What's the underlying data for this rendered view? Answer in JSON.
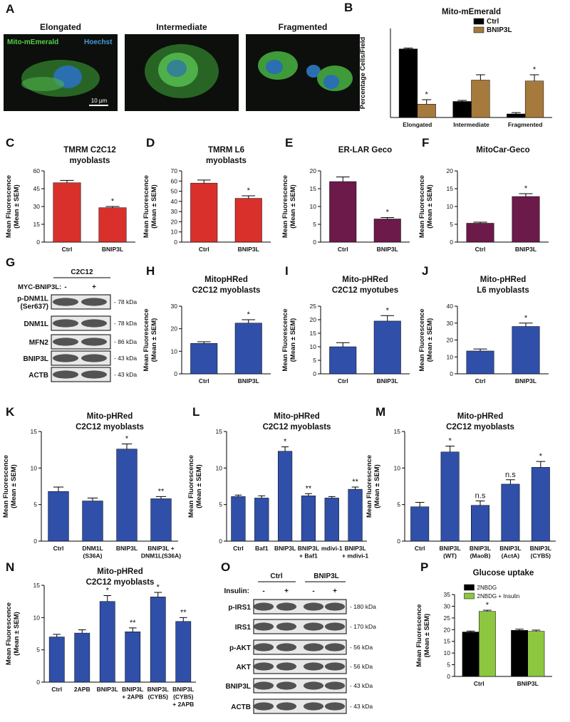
{
  "panel_a": {
    "panel": "A",
    "labels": [
      "Elongated",
      "Intermediate",
      "Fragmented"
    ],
    "channel_green": "Mito-mEmerald",
    "channel_blue": "Hoechst",
    "scale": "10 µm"
  },
  "panel_g": {
    "panel": "G",
    "group": "C2C12",
    "condition": "MYC-BNIP3L:",
    "signs": [
      "-",
      "+"
    ],
    "rows": [
      {
        "label": [
          "p-DNM1L",
          "(Ser637)"
        ],
        "size": "- 78 kDa"
      },
      {
        "label": [
          "DNM1L"
        ],
        "size": "- 78 kDa"
      },
      {
        "label": [
          "MFN2"
        ],
        "size": "- 86 kDa"
      },
      {
        "label": [
          "BNIP3L"
        ],
        "size": "- 43 kDa"
      },
      {
        "label": [
          "ACTB"
        ],
        "size": "- 43 kDa"
      }
    ]
  },
  "panel_o": {
    "panel": "O",
    "groups": [
      "Ctrl",
      "BNIP3L"
    ],
    "condition": "Insulin:",
    "signs": [
      "-",
      "+",
      "-",
      "+"
    ],
    "rows": [
      {
        "label": "p-IRS1",
        "size": "- 180 kDa"
      },
      {
        "label": "IRS1",
        "size": "- 170 kDa"
      },
      {
        "label": "p-AKT",
        "size": "- 56 kDa"
      },
      {
        "label": "AKT",
        "size": "- 56 kDa"
      },
      {
        "label": "BNIP3L",
        "size": "- 43 kDa"
      },
      {
        "label": "ACTB",
        "size": "- 43 kDa"
      }
    ]
  },
  "chart_data": [
    {
      "type": "bar",
      "panel": "B",
      "title": [
        "Mito-mEmerald"
      ],
      "ylabel": [
        "Percentage Cells/Field"
      ],
      "categories": [
        [
          "Elongated"
        ],
        [
          "Intermediate"
        ],
        [
          "Fragmented"
        ]
      ],
      "series": [
        {
          "name": "Ctrl",
          "color": "#000000",
          "values": [
            77,
            18,
            4
          ],
          "errors": [
            1,
            1.2,
            1.5
          ],
          "labels": [
            null,
            null,
            null
          ]
        },
        {
          "name": "BNIP3L",
          "color": "#a67a3c",
          "values": [
            15,
            42,
            41
          ],
          "errors": [
            5,
            6,
            7
          ],
          "labels": [
            "*",
            null,
            "*"
          ]
        }
      ],
      "ylim": [
        0,
        100
      ],
      "legend": "upper right"
    },
    {
      "type": "bar",
      "panel": "C",
      "title": [
        "TMRM C2C12",
        "myoblasts"
      ],
      "ylabel": [
        "Mean Fluorescence",
        "(Mean ± SEM)"
      ],
      "categories": [
        [
          "Ctrl"
        ],
        [
          "BNIP3L"
        ]
      ],
      "values": [
        50,
        29
      ],
      "errors": [
        2,
        1
      ],
      "labels": [
        null,
        "*"
      ],
      "color": "#d9302b",
      "ylim": [
        0,
        60
      ],
      "yticks": [
        0,
        15,
        30,
        45,
        60
      ]
    },
    {
      "type": "bar",
      "panel": "D",
      "title": [
        "TMRM  L6",
        "myoblasts"
      ],
      "ylabel": [
        "Mean Fluorescence",
        "(Mean ± SEM)"
      ],
      "categories": [
        [
          "Ctrl"
        ],
        [
          "BNIP3L"
        ]
      ],
      "values": [
        58,
        43
      ],
      "errors": [
        3,
        2.5
      ],
      "labels": [
        null,
        "*"
      ],
      "color": "#d9302b",
      "ylim": [
        0,
        70
      ],
      "yticks": [
        0,
        10,
        20,
        30,
        40,
        50,
        60,
        70
      ]
    },
    {
      "type": "bar",
      "panel": "E",
      "title": [
        "ER-LAR Geco"
      ],
      "ylabel": [
        "Mean Fluorescence",
        "(Mean ± SEM)"
      ],
      "categories": [
        [
          "Ctrl"
        ],
        [
          "BNIP3L"
        ]
      ],
      "values": [
        17,
        6.5
      ],
      "errors": [
        1.3,
        0.4
      ],
      "labels": [
        null,
        "*"
      ],
      "color": "#6b1a4a",
      "ylim": [
        0,
        20
      ],
      "yticks": [
        0,
        5,
        10,
        15,
        20
      ]
    },
    {
      "type": "bar",
      "panel": "F",
      "title": [
        "MitoCar-Geco"
      ],
      "ylabel": [
        "Mean Fluorescence",
        "(Mean ± SEM)"
      ],
      "categories": [
        [
          "Ctrl"
        ],
        [
          "BNIP3L"
        ]
      ],
      "values": [
        5.3,
        12.8
      ],
      "errors": [
        0.3,
        0.8
      ],
      "labels": [
        null,
        "*"
      ],
      "color": "#6b1a4a",
      "ylim": [
        0,
        20
      ],
      "yticks": [
        0,
        5,
        10,
        15,
        20
      ]
    },
    {
      "type": "bar",
      "panel": "H",
      "title": [
        "MitopHRed",
        "C2C12 myoblasts"
      ],
      "ylabel": [
        "Mean Fluorescence",
        "(Mean ± SEM)"
      ],
      "categories": [
        [
          "Ctrl"
        ],
        [
          "BNIP3L"
        ]
      ],
      "values": [
        13.5,
        22.5
      ],
      "errors": [
        0.7,
        1.5
      ],
      "labels": [
        null,
        "*"
      ],
      "color": "#2f4fa8",
      "ylim": [
        0,
        30
      ],
      "yticks": [
        0,
        10,
        20,
        30
      ]
    },
    {
      "type": "bar",
      "panel": "I",
      "title": [
        "Mito-pHRed",
        "C2C12 myotubes"
      ],
      "ylabel": [
        "Mean Fluorescence",
        "(Mean ± SEM)"
      ],
      "categories": [
        [
          "Ctrl"
        ],
        [
          "BNIP3L"
        ]
      ],
      "values": [
        10,
        19.5
      ],
      "errors": [
        1.5,
        2
      ],
      "labels": [
        null,
        "*"
      ],
      "color": "#2f4fa8",
      "ylim": [
        0,
        25
      ],
      "yticks": [
        0,
        5,
        10,
        15,
        20,
        25
      ]
    },
    {
      "type": "bar",
      "panel": "J",
      "title": [
        "Mito-pHRed",
        "L6 myoblasts"
      ],
      "ylabel": [
        "Mean Fluorescence",
        "(Mean ± SEM)"
      ],
      "categories": [
        [
          "Ctrl"
        ],
        [
          "BNIP3L"
        ]
      ],
      "values": [
        13.5,
        28
      ],
      "errors": [
        1.2,
        2
      ],
      "labels": [
        null,
        "*"
      ],
      "color": "#2f4fa8",
      "ylim": [
        0,
        40
      ],
      "yticks": [
        0,
        10,
        20,
        30,
        40
      ]
    },
    {
      "type": "bar",
      "panel": "K",
      "title": [
        "Mito-pHRed",
        "C2C12 myoblasts"
      ],
      "ylabel": [
        "Mean Fluorescence",
        "(Mean ± SEM)"
      ],
      "categories": [
        [
          "Ctrl"
        ],
        [
          "DNM1L",
          "(S36A)"
        ],
        [
          "BNIP3L"
        ],
        [
          "BNIP3L +",
          "DNM1L(S36A)"
        ]
      ],
      "values": [
        6.8,
        5.5,
        12.6,
        5.8
      ],
      "errors": [
        0.6,
        0.4,
        0.7,
        0.3
      ],
      "labels": [
        null,
        null,
        "*",
        "**"
      ],
      "color": "#2f4fa8",
      "ylim": [
        0,
        15
      ],
      "yticks": [
        0,
        5,
        10,
        15
      ]
    },
    {
      "type": "bar",
      "panel": "L",
      "title": [
        "Mito-pHRed",
        "C2C12 myoblasts"
      ],
      "ylabel": [
        "Mean Fluorescence",
        "(Mean ± SEM)"
      ],
      "categories": [
        [
          "Ctrl"
        ],
        [
          "Baf1"
        ],
        [
          "BNIP3L"
        ],
        [
          "BNIP3L",
          "+ Baf1"
        ],
        [
          "mdivi-1"
        ],
        [
          "BNIP3L",
          "+ mdivi-1"
        ]
      ],
      "values": [
        6.1,
        5.9,
        12.3,
        6.2,
        5.9,
        7.1
      ],
      "errors": [
        0.2,
        0.3,
        0.6,
        0.3,
        0.2,
        0.3
      ],
      "labels": [
        null,
        null,
        "*",
        "**",
        null,
        "**"
      ],
      "color": "#2f4fa8",
      "ylim": [
        0,
        15
      ],
      "yticks": [
        0,
        5,
        10,
        15
      ]
    },
    {
      "type": "bar",
      "panel": "M",
      "title": [
        "Mito-pHRed",
        "C2C12 myoblasts"
      ],
      "ylabel": [
        "Mean Fluorescence",
        "(Mean ± SEM)"
      ],
      "categories": [
        [
          "Ctrl"
        ],
        [
          "BNIP3L",
          "(WT)"
        ],
        [
          "BNIP3L",
          "(MaoB)"
        ],
        [
          "BNIP3L",
          "(ActA)"
        ],
        [
          "BNIP3L",
          "(CYB5)"
        ]
      ],
      "values": [
        4.7,
        12.2,
        4.9,
        7.8,
        10.1
      ],
      "errors": [
        0.6,
        0.8,
        0.6,
        0.6,
        0.8
      ],
      "labels": [
        null,
        "*",
        "n.s",
        "n.s",
        "*"
      ],
      "color": "#2f4fa8",
      "ylim": [
        0,
        15
      ],
      "yticks": [
        0,
        5,
        10,
        15
      ]
    },
    {
      "type": "bar",
      "panel": "N",
      "title": [
        "Mito-pHRed",
        "C2C12 myoblasts"
      ],
      "ylabel": [
        "Mean Fluorescence",
        "(Mean ± SEM)"
      ],
      "categories": [
        [
          "Ctrl"
        ],
        [
          "2APB"
        ],
        [
          "BNIP3L"
        ],
        [
          "BNIP3L",
          "+ 2APB"
        ],
        [
          "BNIP3L",
          "(CYB5)"
        ],
        [
          "BNIP3L",
          "(CYB5)",
          "+ 2APB"
        ]
      ],
      "values": [
        7,
        7.6,
        12.5,
        7.8,
        13.2,
        9.4
      ],
      "errors": [
        0.4,
        0.5,
        0.9,
        0.6,
        0.7,
        0.6
      ],
      "labels": [
        null,
        null,
        "*",
        "**",
        "*",
        "**"
      ],
      "color": "#2f4fa8",
      "ylim": [
        0,
        15
      ],
      "yticks": [
        0,
        5,
        10,
        15
      ]
    },
    {
      "type": "bar",
      "panel": "P",
      "title": [
        "Glucose uptake"
      ],
      "ylabel": [
        "Mean Fluorescence",
        "(Mean ± SEM)"
      ],
      "categories": [
        [
          "Ctrl"
        ],
        [
          "BNIP3L"
        ]
      ],
      "series": [
        {
          "name": "2NBDG",
          "color": "#000000",
          "values": [
            19,
            19.7
          ],
          "errors": [
            0.4,
            0.5
          ],
          "labels": [
            null,
            null
          ]
        },
        {
          "name": "2NBDG + Insulin",
          "color": "#8dc63f",
          "values": [
            27.8,
            19.3
          ],
          "errors": [
            0.5,
            0.5
          ],
          "labels": [
            "*",
            null
          ]
        }
      ],
      "ylim": [
        0,
        35
      ],
      "yticks": [
        0,
        5,
        10,
        15,
        20,
        25,
        30,
        35
      ],
      "legend": "upper center"
    }
  ]
}
